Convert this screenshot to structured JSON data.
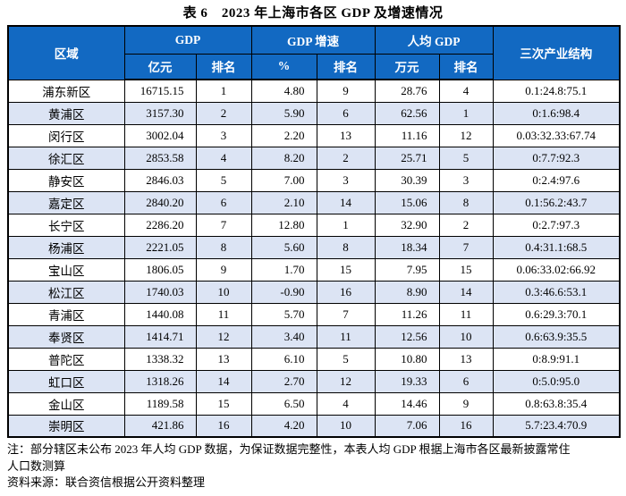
{
  "title": "表 6　2023 年上海市各区 GDP 及增速情况",
  "table": {
    "header": {
      "region": "区域",
      "gdp_group": "GDP",
      "growth_group": "GDP 增速",
      "per_capita_group": "人均 GDP",
      "industry": "三次产业结构",
      "sub": {
        "gdp_unit": "亿元",
        "gdp_rank": "排名",
        "growth_unit": "%",
        "growth_rank": "排名",
        "per_capita_unit": "万元",
        "per_capita_rank": "排名"
      }
    },
    "columns": [
      "region",
      "gdp_value",
      "gdp_rank",
      "growth_value",
      "growth_rank",
      "per_capita_value",
      "per_capita_rank",
      "industry_structure"
    ],
    "rows": [
      [
        "浦东新区",
        "16715.15",
        "1",
        "4.80",
        "9",
        "28.76",
        "4",
        "0.1:24.8:75.1"
      ],
      [
        "黄浦区",
        "3157.30",
        "2",
        "5.90",
        "6",
        "62.56",
        "1",
        "0:1.6:98.4"
      ],
      [
        "闵行区",
        "3002.04",
        "3",
        "2.20",
        "13",
        "11.16",
        "12",
        "0.03:32.33:67.74"
      ],
      [
        "徐汇区",
        "2853.58",
        "4",
        "8.20",
        "2",
        "25.71",
        "5",
        "0:7.7:92.3"
      ],
      [
        "静安区",
        "2846.03",
        "5",
        "7.00",
        "3",
        "30.39",
        "3",
        "0:2.4:97.6"
      ],
      [
        "嘉定区",
        "2840.20",
        "6",
        "2.10",
        "14",
        "15.06",
        "8",
        "0.1:56.2:43.7"
      ],
      [
        "长宁区",
        "2286.20",
        "7",
        "12.80",
        "1",
        "32.90",
        "2",
        "0:2.7:97.3"
      ],
      [
        "杨浦区",
        "2221.05",
        "8",
        "5.60",
        "8",
        "18.34",
        "7",
        "0.4:31.1:68.5"
      ],
      [
        "宝山区",
        "1806.05",
        "9",
        "1.70",
        "15",
        "7.95",
        "15",
        "0.06:33.02:66.92"
      ],
      [
        "松江区",
        "1740.03",
        "10",
        "-0.90",
        "16",
        "8.90",
        "14",
        "0.3:46.6:53.1"
      ],
      [
        "青浦区",
        "1440.08",
        "11",
        "5.70",
        "7",
        "11.26",
        "11",
        "0.6:29.3:70.1"
      ],
      [
        "奉贤区",
        "1414.71",
        "12",
        "3.40",
        "11",
        "12.56",
        "10",
        "0.6:63.9:35.5"
      ],
      [
        "普陀区",
        "1338.32",
        "13",
        "6.10",
        "5",
        "10.80",
        "13",
        "0:8.9:91.1"
      ],
      [
        "虹口区",
        "1318.26",
        "14",
        "2.70",
        "12",
        "19.33",
        "6",
        "0:5.0:95.0"
      ],
      [
        "金山区",
        "1189.58",
        "15",
        "6.50",
        "4",
        "14.46",
        "9",
        "0.8:63.8:35.4"
      ],
      [
        "崇明区",
        "421.86",
        "16",
        "4.20",
        "10",
        "7.06",
        "16",
        "5.7:23.4:70.9"
      ]
    ]
  },
  "notes": {
    "line1": "注：部分辖区未公布 2023 年人均 GDP 数据，为保证数据完整性，本表人均 GDP 根据上海市各区最新披露常住",
    "line2": "人口数测算",
    "source": "资料来源：联合资信根据公开资料整理"
  },
  "colors": {
    "header_bg": "#1269c2",
    "header_text": "#ffffff",
    "row_alt_bg": "#dce4f4",
    "border": "#000000"
  }
}
